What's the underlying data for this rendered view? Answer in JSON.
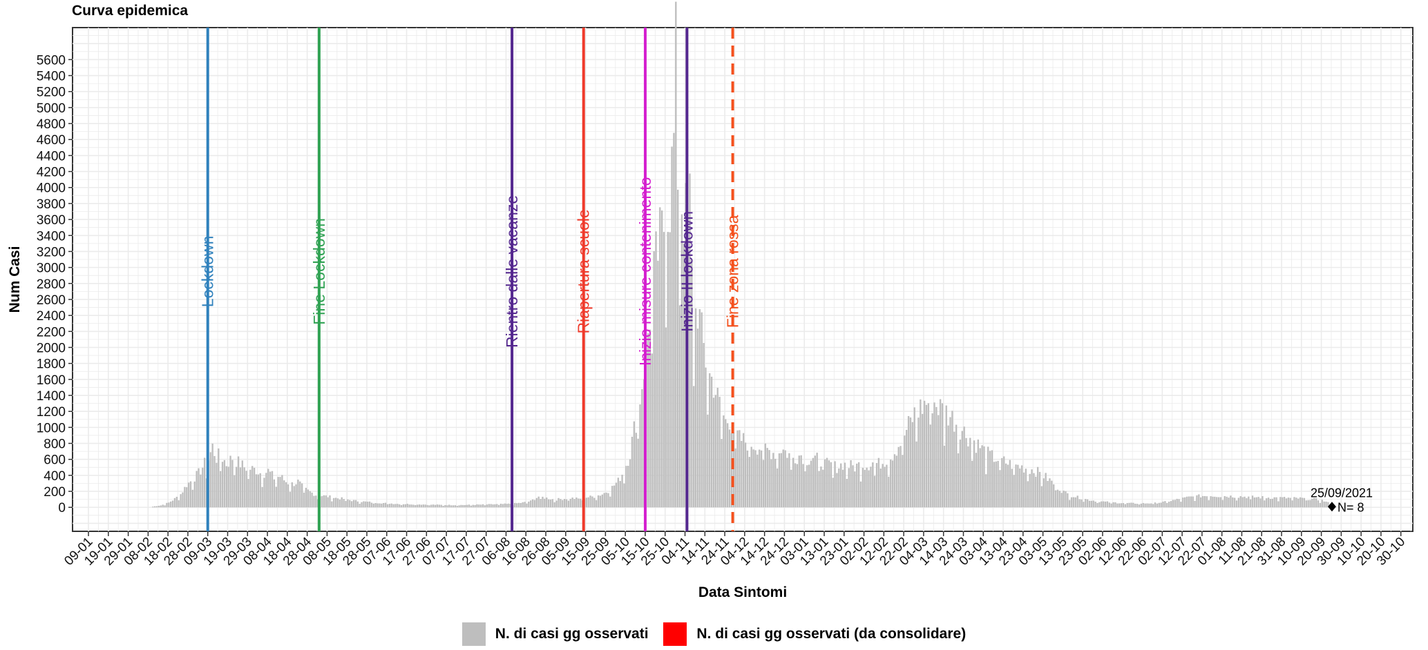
{
  "title": "Curva epidemica",
  "chart_data": {
    "type": "bar",
    "xlabel": "Data Sintomi",
    "ylabel": "Num Casi",
    "ylim": [
      -300,
      6000
    ],
    "yticks": [
      0,
      200,
      400,
      600,
      800,
      1000,
      1200,
      1400,
      1600,
      1800,
      2000,
      2200,
      2400,
      2600,
      2800,
      3000,
      3200,
      3400,
      3600,
      3800,
      4000,
      4200,
      4400,
      4600,
      4800,
      5000,
      5200,
      5400,
      5600
    ],
    "x_start": "2020-01-01",
    "x_end": "2021-11-05",
    "xtick_labels": [
      "09-01",
      "19-01",
      "29-01",
      "08-02",
      "18-02",
      "28-02",
      "09-03",
      "19-03",
      "29-03",
      "08-04",
      "18-04",
      "28-04",
      "08-05",
      "18-05",
      "28-05",
      "07-06",
      "17-06",
      "27-06",
      "07-07",
      "17-07",
      "27-07",
      "06-08",
      "16-08",
      "26-08",
      "05-09",
      "15-09",
      "25-09",
      "05-10",
      "15-10",
      "25-10",
      "04-11",
      "14-11",
      "24-11",
      "04-12",
      "14-12",
      "24-12",
      "03-01",
      "13-01",
      "23-01",
      "02-02",
      "12-02",
      "22-02",
      "04-03",
      "14-03",
      "24-03",
      "03-04",
      "13-04",
      "23-04",
      "03-05",
      "13-05",
      "23-05",
      "02-06",
      "12-06",
      "22-06",
      "02-07",
      "12-07",
      "22-07",
      "01-08",
      "11-08",
      "21-08",
      "31-08",
      "10-09",
      "20-09",
      "30-09",
      "10-10",
      "20-10",
      "30-10"
    ],
    "xtick_dates": [
      "2020-01-09",
      "2020-01-19",
      "2020-01-29",
      "2020-02-08",
      "2020-02-18",
      "2020-02-28",
      "2020-03-09",
      "2020-03-19",
      "2020-03-29",
      "2020-04-08",
      "2020-04-18",
      "2020-04-28",
      "2020-05-08",
      "2020-05-18",
      "2020-05-28",
      "2020-06-07",
      "2020-06-17",
      "2020-06-27",
      "2020-07-07",
      "2020-07-17",
      "2020-07-27",
      "2020-08-06",
      "2020-08-16",
      "2020-08-26",
      "2020-09-05",
      "2020-09-15",
      "2020-09-25",
      "2020-10-05",
      "2020-10-15",
      "2020-10-25",
      "2020-11-04",
      "2020-11-14",
      "2020-11-24",
      "2020-12-04",
      "2020-12-14",
      "2020-12-24",
      "2021-01-03",
      "2021-01-13",
      "2021-01-23",
      "2021-02-02",
      "2021-02-12",
      "2021-02-22",
      "2021-03-04",
      "2021-03-14",
      "2021-03-24",
      "2021-04-03",
      "2021-04-13",
      "2021-04-23",
      "2021-05-03",
      "2021-05-13",
      "2021-05-23",
      "2021-06-02",
      "2021-06-12",
      "2021-06-22",
      "2021-07-02",
      "2021-07-12",
      "2021-07-22",
      "2021-08-01",
      "2021-08-11",
      "2021-08-21",
      "2021-08-31",
      "2021-09-10",
      "2021-09-20",
      "2021-09-30",
      "2021-10-10",
      "2021-10-20",
      "2021-10-30"
    ],
    "series": [
      {
        "name": "N. di casi gg osservati",
        "color": "#bebebe",
        "points": [
          [
            "2020-02-10",
            10
          ],
          [
            "2020-02-14",
            25
          ],
          [
            "2020-02-18",
            60
          ],
          [
            "2020-02-21",
            110
          ],
          [
            "2020-02-24",
            170
          ],
          [
            "2020-02-27",
            290
          ],
          [
            "2020-03-01",
            360
          ],
          [
            "2020-03-04",
            440
          ],
          [
            "2020-03-07",
            560
          ],
          [
            "2020-03-09",
            620
          ],
          [
            "2020-03-11",
            780
          ],
          [
            "2020-03-13",
            640
          ],
          [
            "2020-03-15",
            680
          ],
          [
            "2020-03-18",
            560
          ],
          [
            "2020-03-21",
            640
          ],
          [
            "2020-03-24",
            580
          ],
          [
            "2020-03-27",
            520
          ],
          [
            "2020-03-30",
            500
          ],
          [
            "2020-04-02",
            480
          ],
          [
            "2020-04-05",
            430
          ],
          [
            "2020-04-08",
            470
          ],
          [
            "2020-04-11",
            380
          ],
          [
            "2020-04-14",
            400
          ],
          [
            "2020-04-17",
            330
          ],
          [
            "2020-04-20",
            300
          ],
          [
            "2020-04-23",
            330
          ],
          [
            "2020-04-26",
            240
          ],
          [
            "2020-04-29",
            200
          ],
          [
            "2020-05-02",
            160
          ],
          [
            "2020-05-05",
            150
          ],
          [
            "2020-05-08",
            140
          ],
          [
            "2020-05-12",
            120
          ],
          [
            "2020-05-16",
            110
          ],
          [
            "2020-05-20",
            90
          ],
          [
            "2020-05-25",
            75
          ],
          [
            "2020-05-30",
            65
          ],
          [
            "2020-06-05",
            55
          ],
          [
            "2020-06-12",
            45
          ],
          [
            "2020-06-20",
            40
          ],
          [
            "2020-06-28",
            35
          ],
          [
            "2020-07-06",
            30
          ],
          [
            "2020-07-15",
            30
          ],
          [
            "2020-07-24",
            35
          ],
          [
            "2020-08-01",
            40
          ],
          [
            "2020-08-08",
            45
          ],
          [
            "2020-08-14",
            60
          ],
          [
            "2020-08-18",
            80
          ],
          [
            "2020-08-22",
            140
          ],
          [
            "2020-08-26",
            120
          ],
          [
            "2020-08-30",
            100
          ],
          [
            "2020-09-03",
            110
          ],
          [
            "2020-09-07",
            120
          ],
          [
            "2020-09-11",
            110
          ],
          [
            "2020-09-15",
            130
          ],
          [
            "2020-09-19",
            140
          ],
          [
            "2020-09-23",
            170
          ],
          [
            "2020-09-27",
            230
          ],
          [
            "2020-10-01",
            340
          ],
          [
            "2020-10-04",
            480
          ],
          [
            "2020-10-07",
            700
          ],
          [
            "2020-10-09",
            1000
          ],
          [
            "2020-10-11",
            1250
          ],
          [
            "2020-10-13",
            1600
          ],
          [
            "2020-10-15",
            2000
          ],
          [
            "2020-10-17",
            2500
          ],
          [
            "2020-10-19",
            2950
          ],
          [
            "2020-10-21",
            3300
          ],
          [
            "2020-10-23",
            3500
          ],
          [
            "2020-10-25",
            3800
          ],
          [
            "2020-10-27",
            4000
          ],
          [
            "2020-10-29",
            4700
          ],
          [
            "2020-10-30",
            5700
          ],
          [
            "2020-10-31",
            4400
          ],
          [
            "2020-11-01",
            3900
          ],
          [
            "2020-11-02",
            4000
          ],
          [
            "2020-11-03",
            3800
          ],
          [
            "2020-11-04",
            3700
          ],
          [
            "2020-11-05",
            3200
          ],
          [
            "2020-11-06",
            3950
          ],
          [
            "2020-11-07",
            3000
          ],
          [
            "2020-11-08",
            2400
          ],
          [
            "2020-11-10",
            2600
          ],
          [
            "2020-11-12",
            2200
          ],
          [
            "2020-11-14",
            1900
          ],
          [
            "2020-11-16",
            1700
          ],
          [
            "2020-11-18",
            1600
          ],
          [
            "2020-11-20",
            1400
          ],
          [
            "2020-11-22",
            1250
          ],
          [
            "2020-11-24",
            1100
          ],
          [
            "2020-11-26",
            1150
          ],
          [
            "2020-11-28",
            1000
          ],
          [
            "2020-12-01",
            880
          ],
          [
            "2020-12-04",
            850
          ],
          [
            "2020-12-07",
            820
          ],
          [
            "2020-12-10",
            790
          ],
          [
            "2020-12-13",
            760
          ],
          [
            "2020-12-16",
            730
          ],
          [
            "2020-12-19",
            700
          ],
          [
            "2020-12-22",
            760
          ],
          [
            "2020-12-25",
            700
          ],
          [
            "2020-12-28",
            640
          ],
          [
            "2021-01-01",
            680
          ],
          [
            "2021-01-04",
            620
          ],
          [
            "2021-01-07",
            650
          ],
          [
            "2021-01-10",
            600
          ],
          [
            "2021-01-13",
            560
          ],
          [
            "2021-01-16",
            540
          ],
          [
            "2021-01-19",
            520
          ],
          [
            "2021-01-22",
            560
          ],
          [
            "2021-01-25",
            540
          ],
          [
            "2021-01-28",
            520
          ],
          [
            "2021-01-31",
            560
          ],
          [
            "2021-02-03",
            540
          ],
          [
            "2021-02-06",
            580
          ],
          [
            "2021-02-09",
            560
          ],
          [
            "2021-02-12",
            600
          ],
          [
            "2021-02-15",
            650
          ],
          [
            "2021-02-18",
            760
          ],
          [
            "2021-02-21",
            880
          ],
          [
            "2021-02-24",
            1050
          ],
          [
            "2021-02-27",
            1200
          ],
          [
            "2021-03-02",
            1280
          ],
          [
            "2021-03-05",
            1350
          ],
          [
            "2021-03-08",
            1380
          ],
          [
            "2021-03-11",
            1300
          ],
          [
            "2021-03-14",
            1250
          ],
          [
            "2021-03-17",
            1180
          ],
          [
            "2021-03-20",
            1100
          ],
          [
            "2021-03-23",
            1000
          ],
          [
            "2021-03-26",
            920
          ],
          [
            "2021-03-29",
            850
          ],
          [
            "2021-04-01",
            780
          ],
          [
            "2021-04-04",
            700
          ],
          [
            "2021-04-07",
            650
          ],
          [
            "2021-04-10",
            620
          ],
          [
            "2021-04-13",
            590
          ],
          [
            "2021-04-16",
            560
          ],
          [
            "2021-04-19",
            540
          ],
          [
            "2021-04-22",
            520
          ],
          [
            "2021-04-25",
            500
          ],
          [
            "2021-04-28",
            480
          ],
          [
            "2021-05-01",
            440
          ],
          [
            "2021-05-04",
            390
          ],
          [
            "2021-05-07",
            330
          ],
          [
            "2021-05-10",
            260
          ],
          [
            "2021-05-13",
            200
          ],
          [
            "2021-05-16",
            160
          ],
          [
            "2021-05-20",
            130
          ],
          [
            "2021-05-25",
            100
          ],
          [
            "2021-05-30",
            80
          ],
          [
            "2021-06-05",
            65
          ],
          [
            "2021-06-12",
            55
          ],
          [
            "2021-06-20",
            50
          ],
          [
            "2021-06-28",
            55
          ],
          [
            "2021-07-03",
            70
          ],
          [
            "2021-07-07",
            90
          ],
          [
            "2021-07-11",
            110
          ],
          [
            "2021-07-15",
            130
          ],
          [
            "2021-07-20",
            145
          ],
          [
            "2021-07-26",
            150
          ],
          [
            "2021-08-02",
            145
          ],
          [
            "2021-08-10",
            140
          ],
          [
            "2021-08-18",
            130
          ],
          [
            "2021-08-26",
            125
          ],
          [
            "2021-09-03",
            120
          ],
          [
            "2021-09-10",
            115
          ],
          [
            "2021-09-16",
            105
          ],
          [
            "2021-09-20",
            90
          ],
          [
            "2021-09-23",
            60
          ],
          [
            "2021-09-25",
            8
          ]
        ]
      },
      {
        "name": "N. di casi gg osservati (da consolidare)",
        "color": "#ff0000",
        "points": []
      }
    ],
    "events": [
      {
        "date": "2020-03-09",
        "label": "Lockdown",
        "color": "#3182bd",
        "style": "solid"
      },
      {
        "date": "2020-05-04",
        "label": "Fine Lockdown",
        "color": "#31a354",
        "style": "solid"
      },
      {
        "date": "2020-08-09",
        "label": "Rientro dalle vacanze",
        "color": "#54278f",
        "style": "solid"
      },
      {
        "date": "2020-09-14",
        "label": "Riapertura scuole",
        "color": "#ef3b2c",
        "style": "solid"
      },
      {
        "date": "2020-10-15",
        "label": "Inizio misure contenimento",
        "color": "#d41fcf",
        "style": "solid"
      },
      {
        "date": "2020-11-05",
        "label": "Inizio II lockdown",
        "color": "#54278f",
        "style": "solid"
      },
      {
        "date": "2020-11-28",
        "label": "Fine zona rossa",
        "color": "#f4511e",
        "style": "dashed"
      }
    ],
    "annotation": {
      "date": "2021-09-25",
      "value": 8,
      "label_date": "25/09/2021",
      "label_n": "N= 8"
    },
    "grid": true,
    "legend_position": "bottom"
  }
}
